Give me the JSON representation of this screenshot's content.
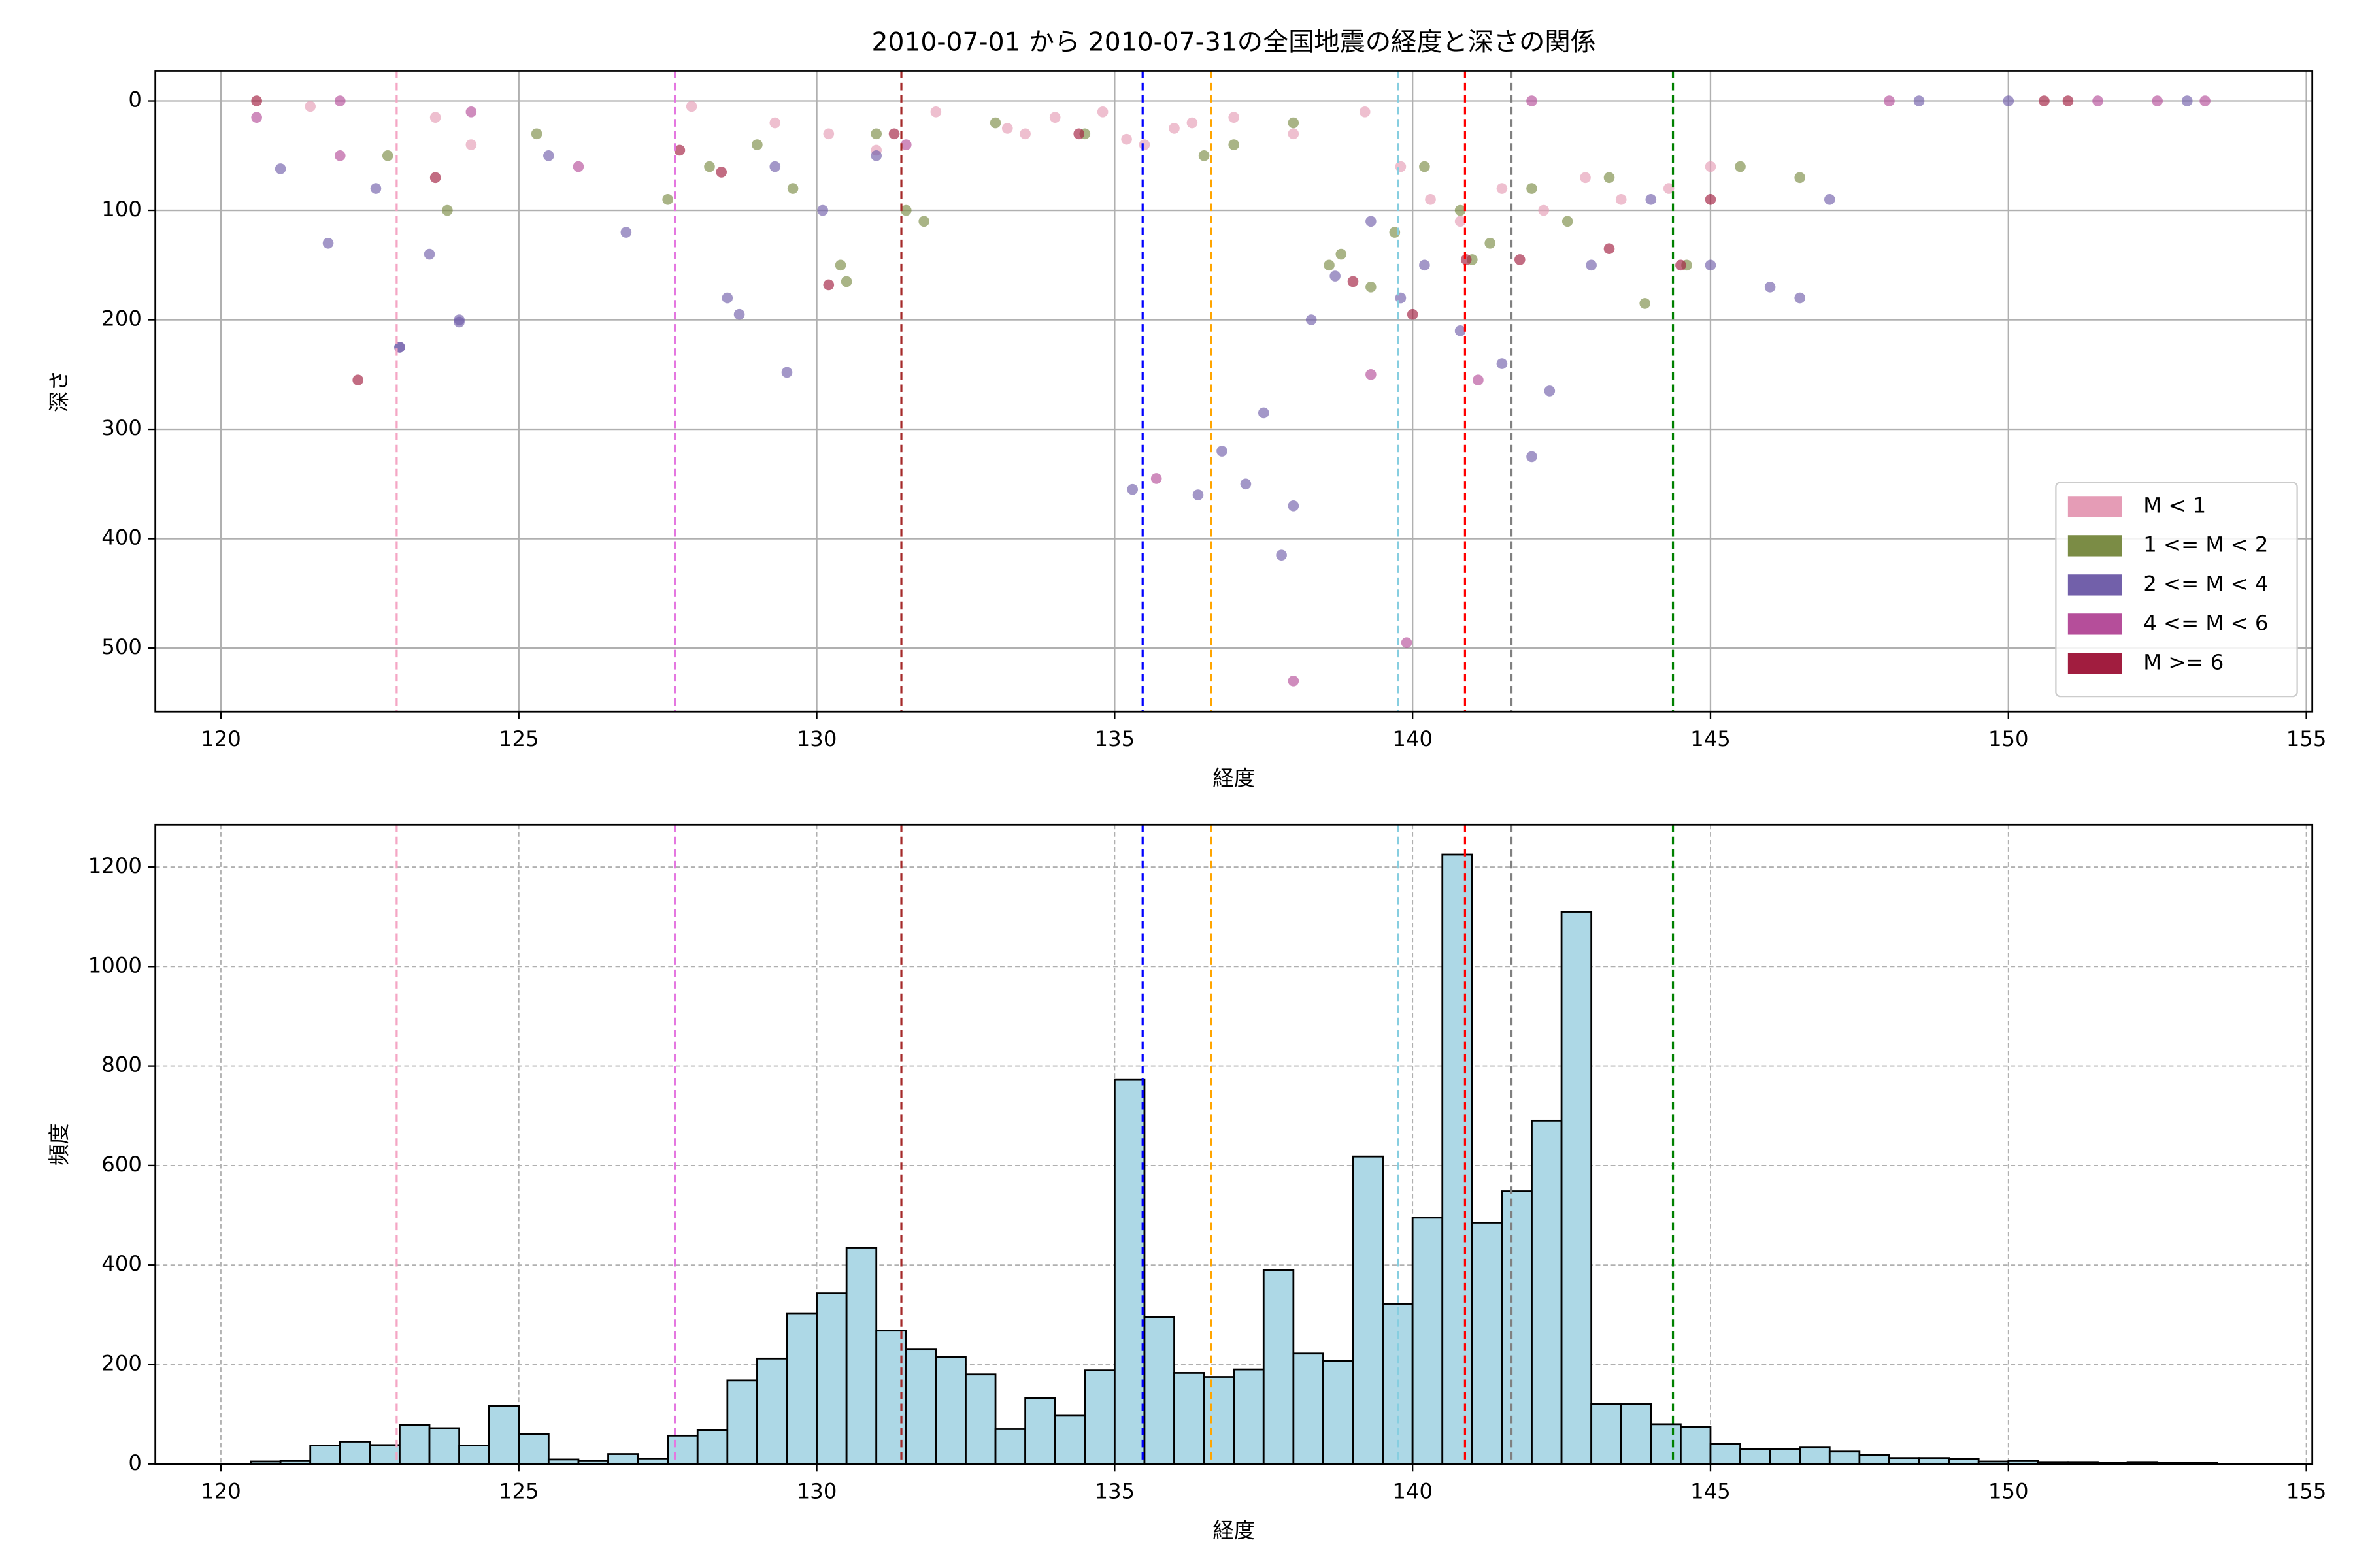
{
  "chart_data": [
    {
      "type": "scatter",
      "title": "2010-07-01 から 2010-07-31の全国地震の経度と深さの関係",
      "x_label": "経度",
      "y_label": "深さ",
      "xlim": [
        118.9,
        155.1
      ],
      "xticks": [
        120,
        125,
        130,
        135,
        140,
        145,
        150,
        155
      ],
      "ylim": [
        -27.5,
        558
      ],
      "y_inverted": true,
      "yticks": [
        0,
        100,
        200,
        300,
        400,
        500
      ],
      "grid": true,
      "grid_linestyle": "solid",
      "legend": "lower right",
      "vlines": [
        {
          "x": 122.95,
          "color": "#f4a6c4"
        },
        {
          "x": 127.62,
          "color": "#e477e0"
        },
        {
          "x": 131.42,
          "color": "#a52a2a"
        },
        {
          "x": 135.47,
          "color": "#0000ff"
        },
        {
          "x": 136.62,
          "color": "#ffa500"
        },
        {
          "x": 139.76,
          "color": "#87cee0"
        },
        {
          "x": 140.88,
          "color": "#ff0000"
        },
        {
          "x": 141.66,
          "color": "#808080"
        },
        {
          "x": 144.37,
          "color": "#008000"
        }
      ],
      "series": [
        {
          "name": "M < 1",
          "color": "#e59cb6",
          "x": [
            121.5,
            123.6,
            124.2,
            127.9,
            129.3,
            130.2,
            131.0,
            132.0,
            133.2,
            134.0,
            134.8,
            135.5,
            136.3,
            137.0,
            138.0,
            139.2,
            139.8,
            140.3,
            140.8,
            141.5,
            142.2,
            142.9,
            143.5,
            144.3,
            145.0,
            133.5,
            135.2,
            136.0
          ],
          "values": [
            5,
            15,
            40,
            5,
            20,
            30,
            45,
            10,
            25,
            15,
            10,
            40,
            20,
            15,
            30,
            10,
            60,
            90,
            110,
            80,
            100,
            70,
            90,
            80,
            60,
            30,
            35,
            25
          ]
        },
        {
          "name": "1 <= M < 2",
          "color": "#7b8c45",
          "x": [
            122.8,
            123.8,
            125.3,
            127.5,
            128.2,
            129.0,
            129.6,
            130.4,
            131.0,
            131.8,
            133.0,
            134.5,
            136.5,
            137.0,
            138.0,
            138.6,
            139.3,
            139.7,
            140.2,
            140.8,
            141.3,
            142.0,
            142.6,
            143.3,
            143.9,
            144.6,
            145.5,
            146.5,
            130.5,
            131.5,
            138.8,
            141.0
          ],
          "values": [
            50,
            100,
            30,
            90,
            60,
            40,
            80,
            150,
            30,
            110,
            20,
            30,
            50,
            40,
            20,
            150,
            170,
            120,
            60,
            100,
            130,
            80,
            110,
            70,
            185,
            150,
            60,
            70,
            165,
            100,
            140,
            145
          ]
        },
        {
          "name": "2 <= M < 4",
          "color": "#7260aa",
          "x": [
            121.0,
            121.8,
            122.6,
            123.0,
            123.5,
            124.0,
            125.5,
            126.8,
            128.5,
            128.7,
            129.3,
            130.1,
            131.0,
            135.3,
            136.4,
            136.8,
            137.2,
            137.5,
            137.8,
            138.0,
            138.3,
            138.7,
            139.3,
            139.8,
            140.2,
            140.8,
            141.5,
            142.0,
            142.3,
            143.0,
            144.0,
            145.0,
            146.0,
            146.5,
            147.0,
            148.5,
            150.0,
            153.0,
            123.0,
            124.0,
            129.5
          ],
          "values": [
            62,
            130,
            80,
            225,
            140,
            200,
            50,
            120,
            180,
            195,
            60,
            100,
            50,
            355,
            360,
            320,
            350,
            285,
            415,
            370,
            200,
            160,
            110,
            180,
            150,
            210,
            240,
            325,
            265,
            150,
            90,
            150,
            170,
            180,
            90,
            0,
            0,
            0,
            225,
            202,
            248
          ]
        },
        {
          "name": "4 <= M < 6",
          "color": "#b54e9a",
          "x": [
            120.6,
            122.0,
            124.2,
            126.0,
            131.5,
            135.7,
            138.0,
            139.3,
            139.9,
            141.1,
            142.0,
            148.0,
            151.5,
            152.5,
            153.3,
            122.0
          ],
          "values": [
            15,
            50,
            10,
            60,
            40,
            345,
            530,
            250,
            495,
            255,
            0,
            0,
            0,
            0,
            0,
            0
          ]
        },
        {
          "name": "M >= 6",
          "color": "#a11d3f",
          "x": [
            120.6,
            122.3,
            123.6,
            127.7,
            128.4,
            130.2,
            131.3,
            134.4,
            139.0,
            140.0,
            140.9,
            141.8,
            143.3,
            144.5,
            145.0,
            150.6,
            151.0
          ],
          "values": [
            0,
            255,
            70,
            45,
            65,
            168,
            30,
            30,
            165,
            195,
            145,
            145,
            135,
            150,
            90,
            0,
            0
          ]
        }
      ]
    },
    {
      "type": "histogram",
      "x_label": "経度",
      "y_label": "頻度",
      "xlim": [
        118.9,
        155.1
      ],
      "xticks": [
        120,
        125,
        130,
        135,
        140,
        145,
        150,
        155
      ],
      "ylim": [
        0,
        1285
      ],
      "yticks": [
        0,
        200,
        400,
        600,
        800,
        1000,
        1200
      ],
      "grid": true,
      "grid_linestyle": "dashed",
      "color": "#add8e6",
      "edgecolor": "#000000",
      "vlines": [
        {
          "x": 122.95,
          "color": "#f4a6c4"
        },
        {
          "x": 127.62,
          "color": "#e477e0"
        },
        {
          "x": 131.42,
          "color": "#a52a2a"
        },
        {
          "x": 135.47,
          "color": "#0000ff"
        },
        {
          "x": 136.62,
          "color": "#ffa500"
        },
        {
          "x": 139.76,
          "color": "#87cee0"
        },
        {
          "x": 140.88,
          "color": "#ff0000"
        },
        {
          "x": 141.66,
          "color": "#808080"
        },
        {
          "x": 144.37,
          "color": "#008000"
        }
      ],
      "bins": [
        120.5,
        121,
        121.5,
        122,
        122.5,
        123,
        123.5,
        124,
        124.5,
        125,
        125.5,
        126,
        126.5,
        127,
        127.5,
        128,
        128.5,
        129,
        129.5,
        130,
        130.5,
        131,
        131.5,
        132,
        132.5,
        133,
        133.5,
        134,
        134.5,
        135,
        135.5,
        136,
        136.5,
        137,
        137.5,
        138,
        138.5,
        139,
        139.5,
        140,
        140.5,
        141,
        141.5,
        142,
        142.5,
        143,
        143.5,
        144,
        144.5,
        145,
        145.5,
        146,
        146.5,
        147,
        147.5,
        148,
        148.5,
        149,
        149.5,
        150,
        150.5,
        151,
        151.5,
        152,
        152.5,
        153,
        153.5
      ],
      "values": [
        5,
        7,
        37,
        45,
        38,
        78,
        72,
        37,
        117,
        60,
        9,
        7,
        20,
        11,
        57,
        68,
        168,
        212,
        303,
        343,
        435,
        268,
        230,
        215,
        180,
        70,
        132,
        97,
        188,
        773,
        295,
        183,
        175,
        190,
        390,
        222,
        207,
        618,
        322,
        495,
        1225,
        485,
        548,
        690,
        1110,
        120,
        120,
        80,
        75,
        40,
        30,
        30,
        33,
        25,
        18,
        12,
        12,
        10,
        5,
        7,
        4,
        4,
        2,
        4,
        3,
        2
      ]
    }
  ]
}
